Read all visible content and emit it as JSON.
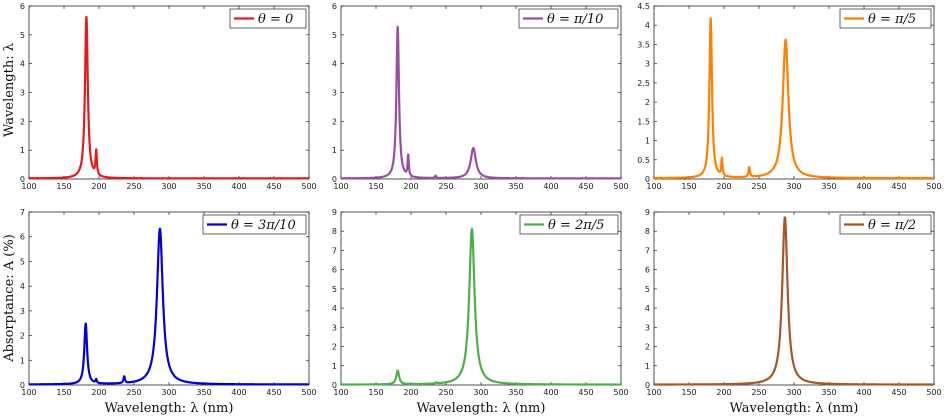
{
  "figure": {
    "ylabel_top": "Wavelength: λ",
    "ylabel_bottom": "Absorptance: A (%)"
  },
  "chart_data": [
    {
      "type": "line",
      "legend": "θ = 0",
      "legend_position": "top-right",
      "color": "#e41a1c",
      "xlabel": "",
      "xlim": [
        100,
        500
      ],
      "ylim": [
        0,
        6
      ],
      "xticks": [
        100,
        150,
        200,
        250,
        300,
        350,
        400,
        450,
        500
      ],
      "yticks": [
        0,
        1,
        2,
        3,
        4,
        5,
        6
      ],
      "ytick_labels": [
        "0",
        "1",
        "2",
        "3",
        "4",
        "5",
        "6"
      ],
      "peaks": [
        {
          "x": 182,
          "y": 5.6,
          "width": 2.4
        },
        {
          "x": 196,
          "y": 0.85,
          "width": 1.1
        }
      ],
      "baseline": 0.02
    },
    {
      "type": "line",
      "legend": "θ = π/10",
      "legend_position": "top-right",
      "color": "#984ea3",
      "xlabel": "",
      "xlim": [
        100,
        500
      ],
      "ylim": [
        0,
        6
      ],
      "xticks": [
        100,
        150,
        200,
        250,
        300,
        350,
        400,
        450,
        500
      ],
      "yticks": [
        0,
        1,
        2,
        3,
        4,
        5,
        6
      ],
      "ytick_labels": [
        "0",
        "1",
        "2",
        "3",
        "4",
        "5",
        "6"
      ],
      "peaks": [
        {
          "x": 181,
          "y": 5.25,
          "width": 2.2
        },
        {
          "x": 196,
          "y": 0.72,
          "width": 1.0
        },
        {
          "x": 235,
          "y": 0.08,
          "width": 1.0
        },
        {
          "x": 289,
          "y": 1.05,
          "width": 4.5
        }
      ],
      "baseline": 0.02
    },
    {
      "type": "line",
      "legend": "θ = π/5",
      "legend_position": "top-right",
      "color": "#ff7f00",
      "xlabel": "",
      "xlim": [
        100,
        500
      ],
      "ylim": [
        0,
        4.5
      ],
      "xticks": [
        100,
        150,
        200,
        250,
        300,
        350,
        400,
        450,
        500
      ],
      "yticks": [
        0,
        0.5,
        1,
        1.5,
        2,
        2.5,
        3,
        3.5,
        4,
        4.5
      ],
      "ytick_labels": [
        "0",
        "0.5",
        "1",
        "1.5",
        "2",
        "2.5",
        "3",
        "3.5",
        "4",
        "4.5"
      ],
      "peaks": [
        {
          "x": 181,
          "y": 4.15,
          "width": 2.2
        },
        {
          "x": 197,
          "y": 0.45,
          "width": 1.0
        },
        {
          "x": 236,
          "y": 0.25,
          "width": 1.2
        },
        {
          "x": 288,
          "y": 3.6,
          "width": 4.8
        }
      ],
      "baseline": 0.02
    },
    {
      "type": "line",
      "legend": "θ = 3π/10",
      "legend_position": "top-right",
      "color": "#0000dd",
      "xlabel": "Wavelength: λ (nm)",
      "xlim": [
        100,
        500
      ],
      "ylim": [
        0,
        7
      ],
      "xticks": [
        100,
        150,
        200,
        250,
        300,
        350,
        400,
        450,
        500
      ],
      "yticks": [
        0,
        1,
        2,
        3,
        4,
        5,
        6,
        7
      ],
      "ytick_labels": [
        "0",
        "1",
        "2",
        "3",
        "4",
        "5",
        "6",
        "7"
      ],
      "peaks": [
        {
          "x": 181,
          "y": 2.45,
          "width": 2.4
        },
        {
          "x": 196,
          "y": 0.15,
          "width": 1.0
        },
        {
          "x": 236,
          "y": 0.27,
          "width": 1.2
        },
        {
          "x": 287,
          "y": 6.3,
          "width": 5.0
        }
      ],
      "baseline": 0.02
    },
    {
      "type": "line",
      "legend": "θ = 2π/5",
      "legend_position": "top-right",
      "color": "#4daf4a",
      "xlabel": "Wavelength: λ (nm)",
      "xlim": [
        100,
        500
      ],
      "ylim": [
        0,
        9
      ],
      "xticks": [
        100,
        150,
        200,
        250,
        300,
        350,
        400,
        450,
        500
      ],
      "yticks": [
        0,
        1,
        2,
        3,
        4,
        5,
        6,
        7,
        8,
        9
      ],
      "ytick_labels": [
        "0",
        "1",
        "2",
        "3",
        "4",
        "5",
        "6",
        "7",
        "8",
        "9"
      ],
      "peaks": [
        {
          "x": 181,
          "y": 0.72,
          "width": 2.4
        },
        {
          "x": 236,
          "y": 0.06,
          "width": 1.2
        },
        {
          "x": 287,
          "y": 8.1,
          "width": 4.6
        }
      ],
      "baseline": 0.02
    },
    {
      "type": "line",
      "legend": "θ = π/2",
      "legend_position": "top-right",
      "color": "#a65628",
      "xlabel": "Wavelength: λ (nm)",
      "xlim": [
        100,
        500
      ],
      "ylim": [
        0,
        9
      ],
      "xticks": [
        100,
        150,
        200,
        250,
        300,
        350,
        400,
        450,
        500
      ],
      "yticks": [
        0,
        1,
        2,
        3,
        4,
        5,
        6,
        7,
        8,
        9
      ],
      "ytick_labels": [
        "0",
        "1",
        "2",
        "3",
        "4",
        "5",
        "6",
        "7",
        "8",
        "9"
      ],
      "peaks": [
        {
          "x": 287,
          "y": 8.7,
          "width": 4.6
        }
      ],
      "baseline": 0.02
    }
  ]
}
